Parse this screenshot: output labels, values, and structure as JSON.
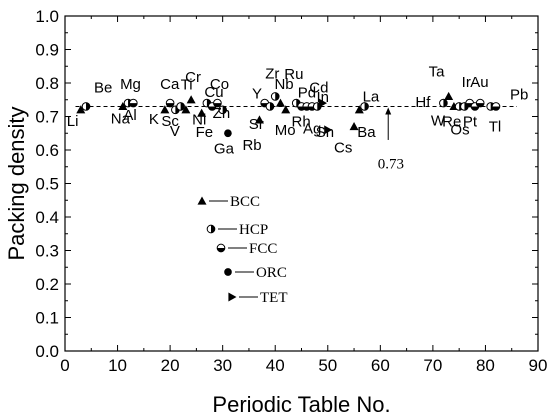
{
  "chart_data": {
    "type": "scatter",
    "xlabel": "Periodic Table No.",
    "ylabel": "Packing density",
    "xlim": [
      0,
      90
    ],
    "ylim": [
      0.0,
      1.0
    ],
    "xticks": [
      "0",
      "10",
      "20",
      "30",
      "40",
      "50",
      "60",
      "70",
      "80",
      "90"
    ],
    "yticks": [
      "0.0",
      "0.1",
      "0.2",
      "0.3",
      "0.4",
      "0.5",
      "0.6",
      "0.7",
      "0.8",
      "0.9",
      "1.0"
    ],
    "reference_line": {
      "y": 0.73,
      "label": "0.73"
    },
    "legend": [
      {
        "key": "bcc",
        "label": "BCC"
      },
      {
        "key": "hcp",
        "label": "HCP"
      },
      {
        "key": "fcc",
        "label": "FCC"
      },
      {
        "key": "orc",
        "label": "ORC"
      },
      {
        "key": "tet",
        "label": "TET"
      }
    ],
    "points": [
      {
        "label": "Li",
        "x": 3,
        "y": 0.72,
        "s": "bcc"
      },
      {
        "label": "Be",
        "x": 4,
        "y": 0.73,
        "s": "hcp"
      },
      {
        "label": "Na",
        "x": 11,
        "y": 0.73,
        "s": "bcc"
      },
      {
        "label": "Mg",
        "x": 12,
        "y": 0.74,
        "s": "hcp"
      },
      {
        "label": "Al",
        "x": 13,
        "y": 0.74,
        "s": "fcc"
      },
      {
        "label": "K",
        "x": 19,
        "y": 0.72,
        "s": "bcc"
      },
      {
        "label": "Ca",
        "x": 20,
        "y": 0.74,
        "s": "fcc"
      },
      {
        "label": "Sc",
        "x": 21,
        "y": 0.72,
        "s": "hcp"
      },
      {
        "label": "Ti",
        "x": 22,
        "y": 0.73,
        "s": "hcp"
      },
      {
        "label": "V",
        "x": 23,
        "y": 0.72,
        "s": "bcc"
      },
      {
        "label": "Cr",
        "x": 24,
        "y": 0.75,
        "s": "bcc"
      },
      {
        "label": "Fe",
        "x": 26,
        "y": 0.71,
        "s": "bcc"
      },
      {
        "label": "Co",
        "x": 27,
        "y": 0.74,
        "s": "hcp"
      },
      {
        "label": "Ni",
        "x": 28,
        "y": 0.73,
        "s": "fcc"
      },
      {
        "label": "Cu",
        "x": 29,
        "y": 0.74,
        "s": "fcc"
      },
      {
        "label": "Zn",
        "x": 30,
        "y": 0.72,
        "s": "hcp"
      },
      {
        "label": "Ga",
        "x": 31,
        "y": 0.65,
        "s": "orc"
      },
      {
        "label": "Rb",
        "x": 37,
        "y": 0.69,
        "s": "bcc"
      },
      {
        "label": "Sr",
        "x": 38,
        "y": 0.74,
        "s": "fcc"
      },
      {
        "label": "Y",
        "x": 39,
        "y": 0.73,
        "s": "hcp"
      },
      {
        "label": "Zr",
        "x": 40,
        "y": 0.76,
        "s": "hcp"
      },
      {
        "label": "Nb",
        "x": 41,
        "y": 0.74,
        "s": "bcc"
      },
      {
        "label": "Mo",
        "x": 42,
        "y": 0.72,
        "s": "bcc"
      },
      {
        "label": "Ru",
        "x": 44,
        "y": 0.74,
        "s": "hcp"
      },
      {
        "label": "Rh",
        "x": 45,
        "y": 0.73,
        "s": "fcc"
      },
      {
        "label": "Pd",
        "x": 46,
        "y": 0.73,
        "s": "fcc"
      },
      {
        "label": "Ag",
        "x": 47,
        "y": 0.73,
        "s": "fcc"
      },
      {
        "label": "Cd",
        "x": 48,
        "y": 0.73,
        "s": "hcp"
      },
      {
        "label": "In",
        "x": 49,
        "y": 0.74,
        "s": "tet"
      },
      {
        "label": "Sn",
        "x": 50,
        "y": 0.66,
        "s": "tet"
      },
      {
        "label": "Cs",
        "x": 55,
        "y": 0.67,
        "s": "bcc"
      },
      {
        "label": "Ba",
        "x": 56,
        "y": 0.72,
        "s": "bcc"
      },
      {
        "label": "La",
        "x": 57,
        "y": 0.73,
        "s": "hcp"
      },
      {
        "label": "Hf",
        "x": 72,
        "y": 0.74,
        "s": "hcp"
      },
      {
        "label": "Ta",
        "x": 73,
        "y": 0.76,
        "s": "bcc"
      },
      {
        "label": "W",
        "x": 74,
        "y": 0.73,
        "s": "bcc"
      },
      {
        "label": "Re",
        "x": 75,
        "y": 0.73,
        "s": "hcp"
      },
      {
        "label": "Os",
        "x": 76,
        "y": 0.73,
        "s": "hcp"
      },
      {
        "label": "Ir",
        "x": 77,
        "y": 0.74,
        "s": "fcc"
      },
      {
        "label": "Pt",
        "x": 78,
        "y": 0.73,
        "s": "fcc"
      },
      {
        "label": "Au",
        "x": 79,
        "y": 0.74,
        "s": "fcc"
      },
      {
        "label": "Tl",
        "x": 81,
        "y": 0.73,
        "s": "hcp"
      },
      {
        "label": "Pb",
        "x": 82,
        "y": 0.73,
        "s": "fcc"
      }
    ]
  }
}
